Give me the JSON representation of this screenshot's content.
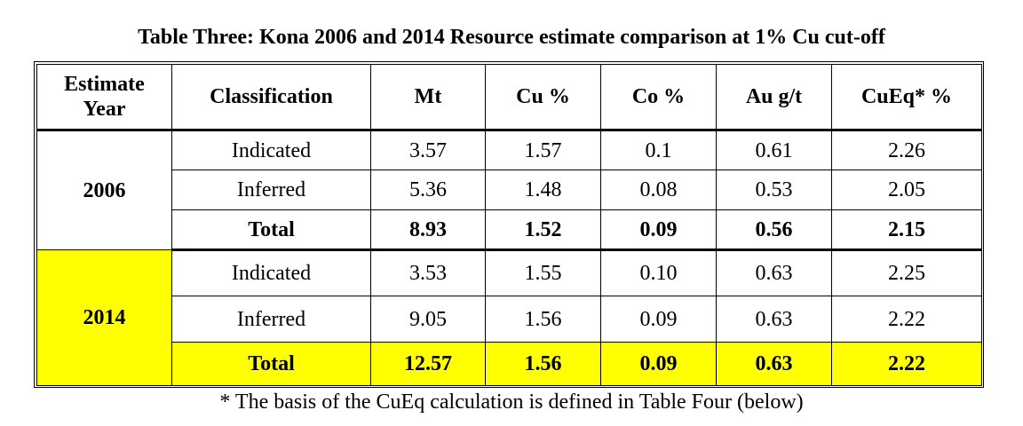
{
  "title": "Table Three: Kona 2006 and 2014 Resource estimate comparison at 1% Cu cut-off",
  "headers": {
    "year": "Estimate Year",
    "classification": "Classification",
    "mt": "Mt",
    "cu": "Cu %",
    "co": "Co %",
    "au": "Au g/t",
    "cueq": "CuEq* %"
  },
  "groups": [
    {
      "year": "2006",
      "highlight": false,
      "rows": [
        {
          "classification": "Indicated",
          "mt": "3.57",
          "cu": "1.57",
          "co": "0.1",
          "au": "0.61",
          "cueq": "2.26"
        },
        {
          "classification": "Inferred",
          "mt": "5.36",
          "cu": "1.48",
          "co": "0.08",
          "au": "0.53",
          "cueq": "2.05"
        },
        {
          "classification": "Total",
          "mt": "8.93",
          "cu": "1.52",
          "co": "0.09",
          "au": "0.56",
          "cueq": "2.15"
        }
      ]
    },
    {
      "year": "2014",
      "highlight": true,
      "highlight_color": "#ffff00",
      "rows": [
        {
          "classification": "Indicated",
          "mt": "3.53",
          "cu": "1.55",
          "co": "0.10",
          "au": "0.63",
          "cueq": "2.25"
        },
        {
          "classification": "Inferred",
          "mt": "9.05",
          "cu": "1.56",
          "co": "0.09",
          "au": "0.63",
          "cueq": "2.22"
        },
        {
          "classification": "Total",
          "mt": "12.57",
          "cu": "1.56",
          "co": "0.09",
          "au": "0.63",
          "cueq": "2.22"
        }
      ]
    }
  ],
  "footnote": "* The basis of the CuEq calculation is defined in Table Four (below)"
}
